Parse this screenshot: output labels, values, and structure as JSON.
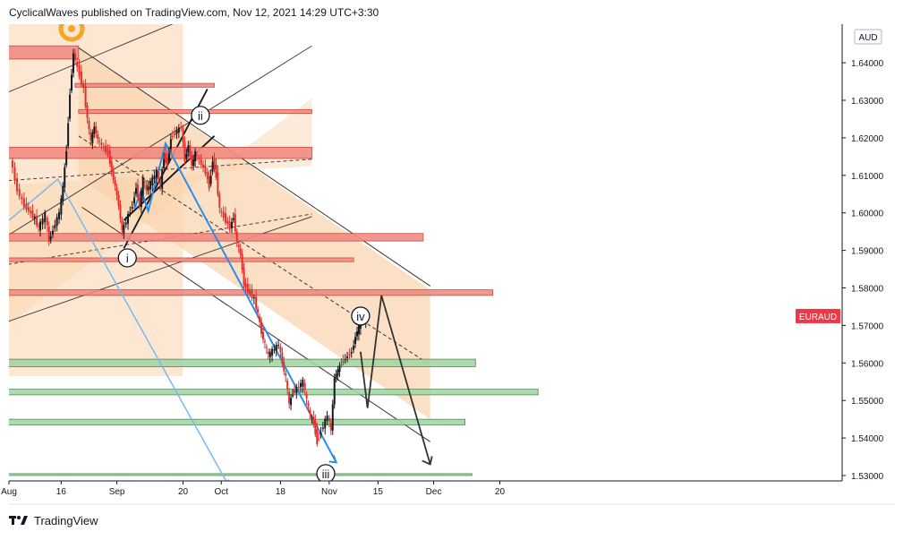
{
  "header": {
    "publisher_line": "CyclicalWaves published on TradingView.com, Nov 12, 2021 14:29 UTC+3:30"
  },
  "footer": {
    "brand": "TradingView",
    "logo_icon": "tradingview-logo-icon"
  },
  "colors": {
    "up_candle": "#131722",
    "down_candle": "#e0302c",
    "zone_fill": "#fbd3ad",
    "red_zone": "#f28b82",
    "green_zone": "#a5d6a7",
    "blue_line": "#2a8de8",
    "light_blue_line": "#7ab8ee",
    "symbol_badge": "#f23645"
  },
  "chart_data": {
    "type": "candlestick",
    "symbol_label": "EURAUD",
    "currency": "AUD",
    "y_axis": {
      "range": [
        1.527,
        1.652
      ],
      "ticks": [
        "1.64000",
        "1.63000",
        "1.62000",
        "1.61000",
        "1.60000",
        "1.59000",
        "1.58000",
        "1.57000",
        "1.56000",
        "1.55000",
        "1.54000",
        "1.53000"
      ]
    },
    "x_axis": {
      "ticks": [
        "Aug",
        "16",
        "Sep",
        "20",
        "Oct",
        "18",
        "Nov",
        "15",
        "Dec",
        "20"
      ]
    },
    "wave_labels": [
      "i",
      "ii",
      "iii",
      "iv"
    ],
    "price_path": [
      [
        "2021-08-02",
        1.6145
      ],
      [
        "2021-08-04",
        1.606
      ],
      [
        "2021-08-06",
        1.602
      ],
      [
        "2021-08-09",
        1.5985
      ],
      [
        "2021-08-10",
        1.596
      ],
      [
        "2021-08-12",
        1.5995
      ],
      [
        "2021-08-13",
        1.5925
      ],
      [
        "2021-08-16",
        1.6
      ],
      [
        "2021-08-17",
        1.607
      ],
      [
        "2021-08-18",
        1.617
      ],
      [
        "2021-08-19",
        1.632
      ],
      [
        "2021-08-20",
        1.6425
      ],
      [
        "2021-08-23",
        1.633
      ],
      [
        "2021-08-24",
        1.625
      ],
      [
        "2021-08-25",
        1.619
      ],
      [
        "2021-08-26",
        1.623
      ],
      [
        "2021-08-27",
        1.6195
      ],
      [
        "2021-08-30",
        1.616
      ],
      [
        "2021-08-31",
        1.611
      ],
      [
        "2021-09-01",
        1.607
      ],
      [
        "2021-09-02",
        1.602
      ],
      [
        "2021-09-03",
        1.595
      ],
      [
        "2021-09-06",
        1.602
      ],
      [
        "2021-09-07",
        1.607
      ],
      [
        "2021-09-08",
        1.602
      ],
      [
        "2021-09-09",
        1.609
      ],
      [
        "2021-09-10",
        1.606
      ],
      [
        "2021-09-13",
        1.611
      ],
      [
        "2021-09-14",
        1.607
      ],
      [
        "2021-09-15",
        1.615
      ],
      [
        "2021-09-16",
        1.613
      ],
      [
        "2021-09-17",
        1.62
      ],
      [
        "2021-09-20",
        1.623
      ],
      [
        "2021-09-21",
        1.614
      ],
      [
        "2021-09-22",
        1.618
      ],
      [
        "2021-09-23",
        1.6125
      ],
      [
        "2021-09-24",
        1.616
      ],
      [
        "2021-09-27",
        1.611
      ],
      [
        "2021-09-28",
        1.607
      ],
      [
        "2021-09-29",
        1.614
      ],
      [
        "2021-09-30",
        1.61
      ],
      [
        "2021-10-01",
        1.601
      ],
      [
        "2021-10-04",
        1.596
      ],
      [
        "2021-10-05",
        1.599
      ],
      [
        "2021-10-06",
        1.592
      ],
      [
        "2021-10-07",
        1.589
      ],
      [
        "2021-10-08",
        1.581
      ],
      [
        "2021-10-11",
        1.577
      ],
      [
        "2021-10-12",
        1.573
      ],
      [
        "2021-10-13",
        1.568
      ],
      [
        "2021-10-14",
        1.565
      ],
      [
        "2021-10-15",
        1.562
      ],
      [
        "2021-10-18",
        1.565
      ],
      [
        "2021-10-19",
        1.56
      ],
      [
        "2021-10-20",
        1.556
      ],
      [
        "2021-10-21",
        1.549
      ],
      [
        "2021-10-22",
        1.552
      ],
      [
        "2021-10-25",
        1.555
      ],
      [
        "2021-10-26",
        1.55
      ],
      [
        "2021-10-27",
        1.546
      ],
      [
        "2021-10-28",
        1.544
      ],
      [
        "2021-10-29",
        1.539
      ],
      [
        "2021-11-01",
        1.546
      ],
      [
        "2021-11-02",
        1.542
      ],
      [
        "2021-11-03",
        1.556
      ],
      [
        "2021-11-04",
        1.558
      ],
      [
        "2021-11-05",
        1.56
      ],
      [
        "2021-11-08",
        1.563
      ],
      [
        "2021-11-09",
        1.567
      ],
      [
        "2021-11-10",
        1.57
      ],
      [
        "2021-11-11",
        1.573
      ],
      [
        "2021-11-12",
        1.5705
      ]
    ],
    "projection_path": [
      [
        "2021-11-10",
        1.563
      ],
      [
        "2021-11-12",
        1.548
      ],
      [
        "2021-11-16",
        1.578
      ],
      [
        "2021-11-30",
        1.533
      ]
    ],
    "horizontal_zones": [
      {
        "kind": "red",
        "top": 1.6445,
        "bottom": 1.641,
        "from": "2021-07-30",
        "to": "2021-08-21"
      },
      {
        "kind": "red",
        "top": 1.6345,
        "bottom": 1.6335,
        "from": "2021-08-20",
        "to": "2021-09-29"
      },
      {
        "kind": "red",
        "top": 1.6275,
        "bottom": 1.6265,
        "from": "2021-08-21",
        "to": "2021-10-27"
      },
      {
        "kind": "red",
        "top": 1.6175,
        "bottom": 1.6145,
        "from": "2021-07-30",
        "to": "2021-10-27"
      },
      {
        "kind": "red",
        "top": 1.5945,
        "bottom": 1.5925,
        "from": "2021-07-30",
        "to": "2021-11-28"
      },
      {
        "kind": "red",
        "top": 1.588,
        "bottom": 1.587,
        "from": "2021-07-30",
        "to": "2021-11-08"
      },
      {
        "kind": "red",
        "top": 1.5795,
        "bottom": 1.578,
        "from": "2021-07-30",
        "to": "2021-12-18"
      },
      {
        "kind": "green",
        "top": 1.561,
        "bottom": 1.559,
        "from": "2021-07-30",
        "to": "2021-12-13"
      },
      {
        "kind": "green",
        "top": 1.553,
        "bottom": 1.5515,
        "from": "2021-07-30",
        "to": "2021-12-31"
      },
      {
        "kind": "green",
        "top": 1.545,
        "bottom": 1.5435,
        "from": "2021-07-30",
        "to": "2021-12-10"
      },
      {
        "kind": "green",
        "top": 1.5305,
        "bottom": 1.53,
        "from": "2021-07-30",
        "to": "2021-12-12"
      }
    ]
  }
}
